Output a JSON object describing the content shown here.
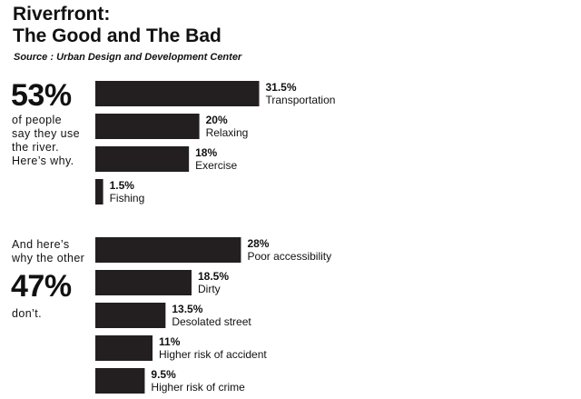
{
  "header": {
    "title_line1": "Riverfront:",
    "title_line2": "The Good and The Bad",
    "source": "Source : Urban Design and Development Center"
  },
  "panel_use": {
    "big_number": "53%",
    "note_lines": [
      "of people",
      "say they use",
      "the river.",
      "Here’s why."
    ]
  },
  "panel_dont": {
    "note_lines_top": [
      "And here’s",
      "why the other"
    ],
    "big_number": "47%",
    "note_bottom": "don’t."
  },
  "colors": {
    "bar": "#231f20",
    "text": "#111111",
    "background": "#ffffff"
  },
  "chart_data": [
    {
      "type": "bar",
      "orientation": "horizontal",
      "value_suffix": "%",
      "categories": [
        "Transportation",
        "Relaxing",
        "Exercise",
        "Fishing"
      ],
      "values": [
        31.5,
        20,
        18,
        1.5
      ],
      "value_labels": [
        "31.5%",
        "20%",
        "18%",
        "1.5%"
      ]
    },
    {
      "type": "bar",
      "orientation": "horizontal",
      "value_suffix": "%",
      "categories": [
        "Poor accessibility",
        "Dirty",
        "Desolated street",
        "Higher risk of accident",
        "Higher risk of crime"
      ],
      "values": [
        28,
        18.5,
        13.5,
        11,
        9.5
      ],
      "value_labels": [
        "28%",
        "18.5%",
        "13.5%",
        "11%",
        "9.5%"
      ]
    }
  ]
}
